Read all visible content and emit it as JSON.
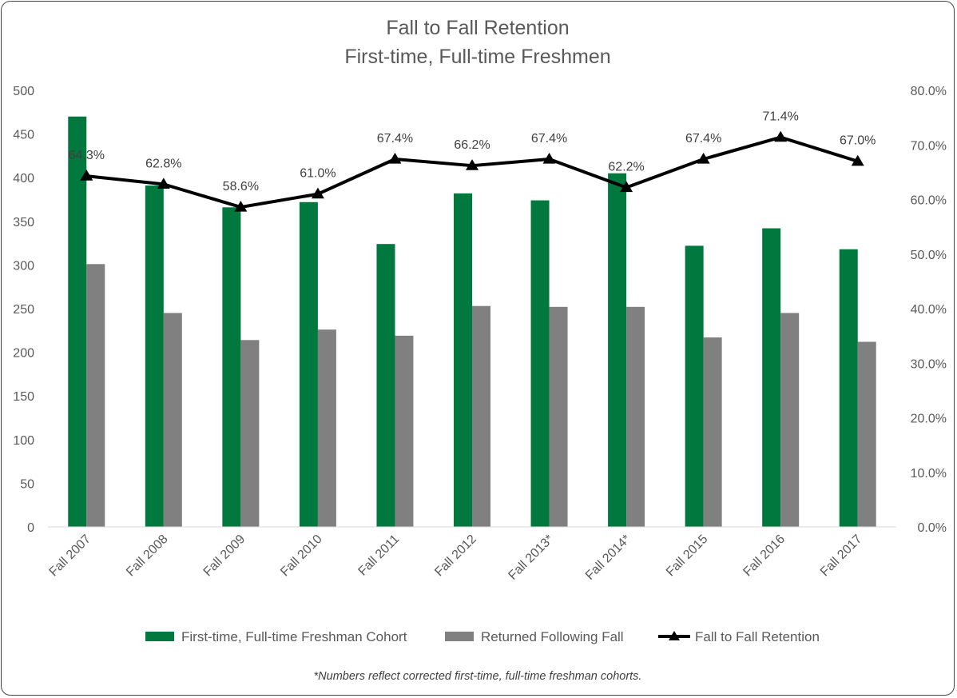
{
  "chart_data": {
    "type": "bar",
    "title": "Fall to Fall Retention",
    "subtitle": "First-time, Full-time Freshmen",
    "categories": [
      "Fall 2007",
      "Fall 2008",
      "Fall 2009",
      "Fall 2010",
      "Fall 2011",
      "Fall 2012",
      "Fall 2013*",
      "Fall 2014*",
      "Fall 2015",
      "Fall 2016",
      "Fall 2017"
    ],
    "series": [
      {
        "name": "First-time, Full-time Freshman Cohort",
        "type": "bar",
        "axis": "left",
        "color": "#00783E",
        "values": [
          470,
          391,
          366,
          372,
          324,
          382,
          374,
          405,
          322,
          342,
          318
        ]
      },
      {
        "name": "Returned Following Fall",
        "type": "bar",
        "axis": "left",
        "color": "#808080",
        "values": [
          301,
          245,
          214,
          226,
          219,
          253,
          252,
          252,
          217,
          245,
          212
        ]
      },
      {
        "name": "Fall to Fall Retention",
        "type": "line",
        "axis": "right",
        "color": "#000000",
        "marker": "triangle",
        "values": [
          64.3,
          62.8,
          58.6,
          61.0,
          67.4,
          66.2,
          67.4,
          62.2,
          67.4,
          71.4,
          67.0
        ],
        "labels": [
          "64.3%",
          "62.8%",
          "58.6%",
          "61.0%",
          "67.4%",
          "66.2%",
          "67.4%",
          "62.2%",
          "67.4%",
          "71.4%",
          "67.0%"
        ]
      }
    ],
    "ylim": [
      0,
      500
    ],
    "yticks": [
      "0",
      "50",
      "100",
      "150",
      "200",
      "250",
      "300",
      "350",
      "400",
      "450",
      "500"
    ],
    "y2lim": [
      0,
      80
    ],
    "y2ticks": [
      "0.0%",
      "10.0%",
      "20.0%",
      "30.0%",
      "40.0%",
      "50.0%",
      "60.0%",
      "70.0%",
      "80.0%"
    ],
    "grid": false,
    "legend_position": "bottom",
    "footnote": "*Numbers reflect corrected first-time, full-time freshman cohorts."
  }
}
